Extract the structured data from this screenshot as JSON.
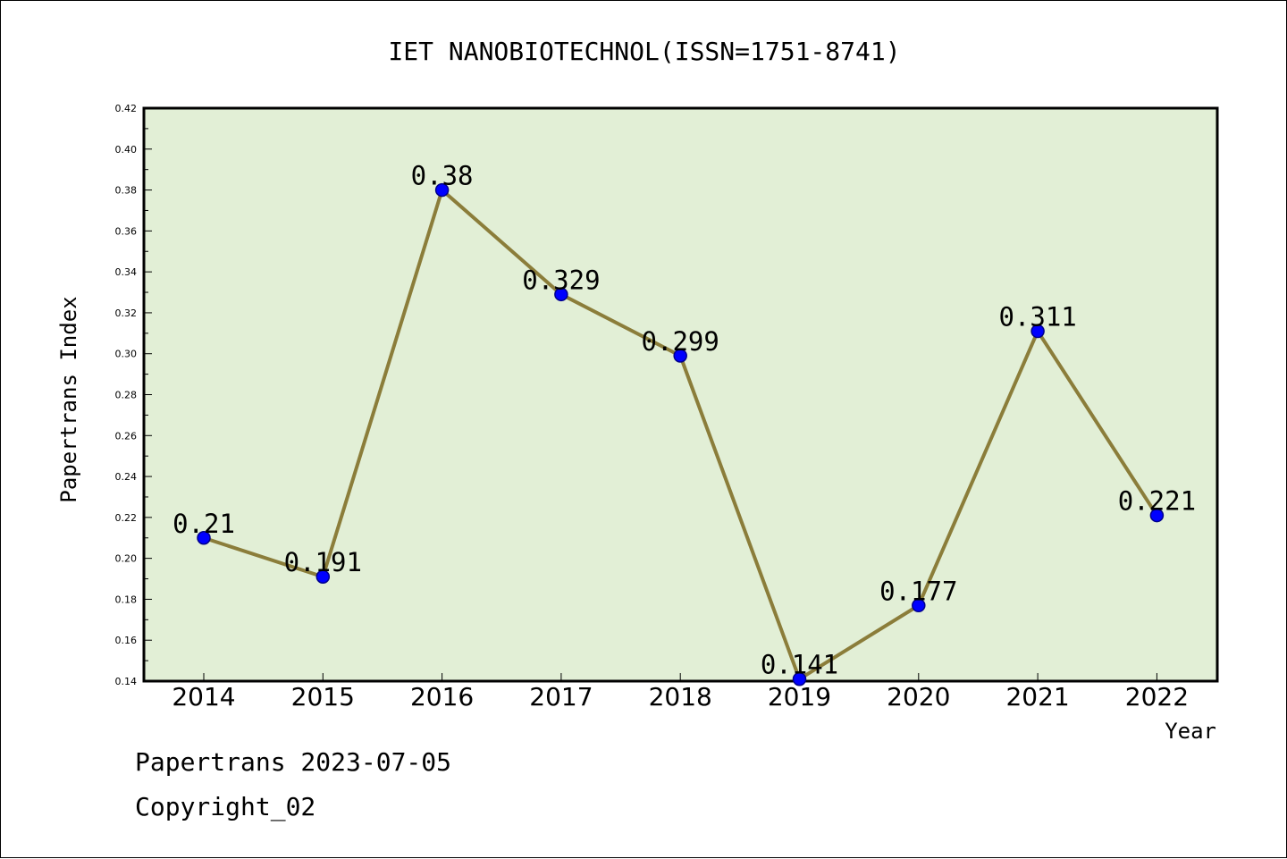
{
  "chart_data": {
    "type": "line",
    "title": "IET NANOBIOTECHNOL(ISSN=1751-8741)",
    "xlabel": "Year",
    "ylabel": "Papertrans Index",
    "categories": [
      "2014",
      "2015",
      "2016",
      "2017",
      "2018",
      "2019",
      "2020",
      "2021",
      "2022"
    ],
    "series": [
      {
        "values": [
          0.21,
          0.191,
          0.38,
          0.329,
          0.299,
          0.141,
          0.177,
          0.311,
          0.221
        ]
      }
    ],
    "data_labels": [
      "0.21",
      "0.191",
      "0.38",
      "0.329",
      "0.299",
      "0.141",
      "0.177",
      "0.311",
      "0.221"
    ],
    "ylim": [
      0.14,
      0.42
    ],
    "yticks": [
      "0.14",
      "0.16",
      "0.18",
      "0.20",
      "0.22",
      "0.24",
      "0.26",
      "0.28",
      "0.30",
      "0.32",
      "0.34",
      "0.36",
      "0.38",
      "0.40",
      "0.42"
    ],
    "grid": false,
    "legend": "none",
    "colors": {
      "plot_background": "#e2efd6",
      "line": "#8b7d3a",
      "marker": "#0000ff"
    }
  },
  "footer": {
    "line1": "Papertrans 2023-07-05",
    "line2": "Copyright_02"
  }
}
